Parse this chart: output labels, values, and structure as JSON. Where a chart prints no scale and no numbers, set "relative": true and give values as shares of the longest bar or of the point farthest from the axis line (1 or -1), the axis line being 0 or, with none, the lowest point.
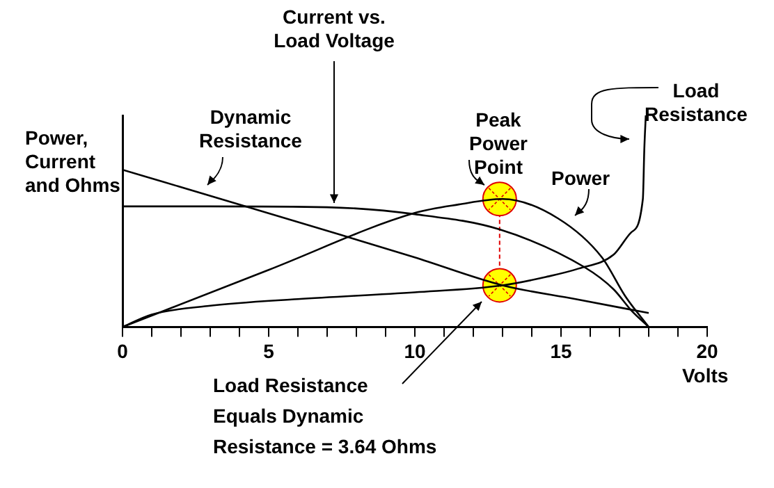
{
  "chart_data": {
    "type": "line",
    "relative": true,
    "xlabel": "Volts",
    "ylabel": "Power, Current and Ohms",
    "xlim": [
      0,
      20
    ],
    "xticks": [
      0,
      {
        "value": 1,
        "label": null
      },
      {
        "value": 2,
        "label": null
      },
      {
        "value": 3,
        "label": null
      },
      {
        "value": 4,
        "label": null
      },
      5,
      {
        "value": 6,
        "label": null
      },
      {
        "value": 7,
        "label": null
      },
      {
        "value": 8,
        "label": null
      },
      {
        "value": 9,
        "label": null
      },
      10,
      {
        "value": 11,
        "label": null
      },
      {
        "value": 12,
        "label": null
      },
      {
        "value": 13,
        "label": null
      },
      {
        "value": 14,
        "label": null
      },
      15,
      {
        "value": 16,
        "label": null
      },
      {
        "value": 17,
        "label": null
      },
      {
        "value": 18,
        "label": null
      },
      {
        "value": 19,
        "label": null
      },
      20
    ],
    "series": [
      {
        "name": "Current vs. Load Voltage",
        "color": "#000000",
        "x": [
          0,
          3,
          7,
          10,
          12.9,
          15.8,
          16.8,
          17.4,
          18
        ],
        "values": [
          0.57,
          0.57,
          0.566,
          0.533,
          0.461,
          0.283,
          0.178,
          0.079,
          0
        ]
      },
      {
        "name": "Dynamic Resistance",
        "color": "#000000",
        "x": [
          0,
          4,
          7.5,
          10,
          13,
          15.5,
          18
        ],
        "values": [
          0.743,
          0.579,
          0.434,
          0.329,
          0.197,
          0.132,
          0.066
        ]
      },
      {
        "name": "Power",
        "color": "#000000",
        "x": [
          0,
          5,
          10,
          11.5,
          13,
          14.9,
          16.4,
          17.2,
          18
        ],
        "values": [
          0,
          0.27,
          0.539,
          0.579,
          0.605,
          0.513,
          0.329,
          0.145,
          0
        ]
      },
      {
        "name": "Load Resistance",
        "color": "#000000",
        "x": [
          0,
          1,
          2.9,
          6,
          10,
          13,
          14.5,
          15.6,
          16.8,
          17.4,
          17.8,
          17.85,
          17.9
        ],
        "values": [
          0,
          0.059,
          0.099,
          0.132,
          0.164,
          0.197,
          0.237,
          0.276,
          0.342,
          0.447,
          0.605,
          0.842,
          1
        ]
      },
      {
        "type": "scatter",
        "color": "#ffff00",
        "marker": "circle",
        "x": [
          12.9,
          12.9
        ],
        "values": [
          0.605,
          0.197
        ]
      }
    ],
    "annotations": [
      "Peak Power Point",
      "Load Resistance Equals Dynamic Resistance = 3.64 Ohms"
    ],
    "grid": false,
    "legend": false,
    "marker": "none",
    "line_style": "solid"
  }
}
